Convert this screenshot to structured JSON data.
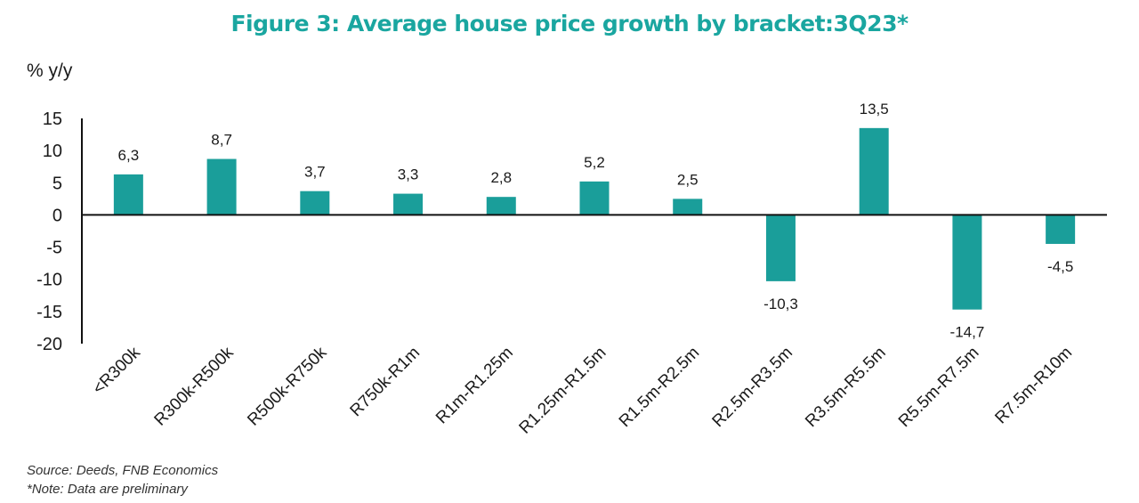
{
  "chart_data": {
    "type": "bar",
    "title": "Figure 3: Average house price growth by bracket:3Q23*",
    "ylabel": "% y/y",
    "xlabel": "",
    "categories": [
      "<R300k",
      "R300k-R500k",
      "R500k-R750k",
      "R750k-R1m",
      "R1m-R1.25m",
      "R1.25m-R1.5m",
      "R1.5m-R2.5m",
      "R2.5m-R3.5m",
      "R3.5m-R5.5m",
      "R5.5m-R7.5m",
      "R7.5m-R10m"
    ],
    "values": [
      6.3,
      8.7,
      3.7,
      3.3,
      2.8,
      5.2,
      2.5,
      -10.3,
      13.5,
      -14.7,
      -4.5
    ],
    "value_labels": [
      "6,3",
      "8,7",
      "3,7",
      "3,3",
      "2,8",
      "5,2",
      "2,5",
      "-10,3",
      "13,5",
      "-14,7",
      "-4,5"
    ],
    "ylim": [
      -20,
      15
    ],
    "yticks": [
      15,
      10,
      5,
      0,
      -5,
      -10,
      -15,
      -20
    ],
    "grid": false,
    "legend": "none",
    "bar_color": "#1a9e9a",
    "title_color": "#1aa6a0"
  },
  "footer": {
    "source": "Source: Deeds, FNB Economics",
    "note": "*Note: Data are preliminary"
  }
}
